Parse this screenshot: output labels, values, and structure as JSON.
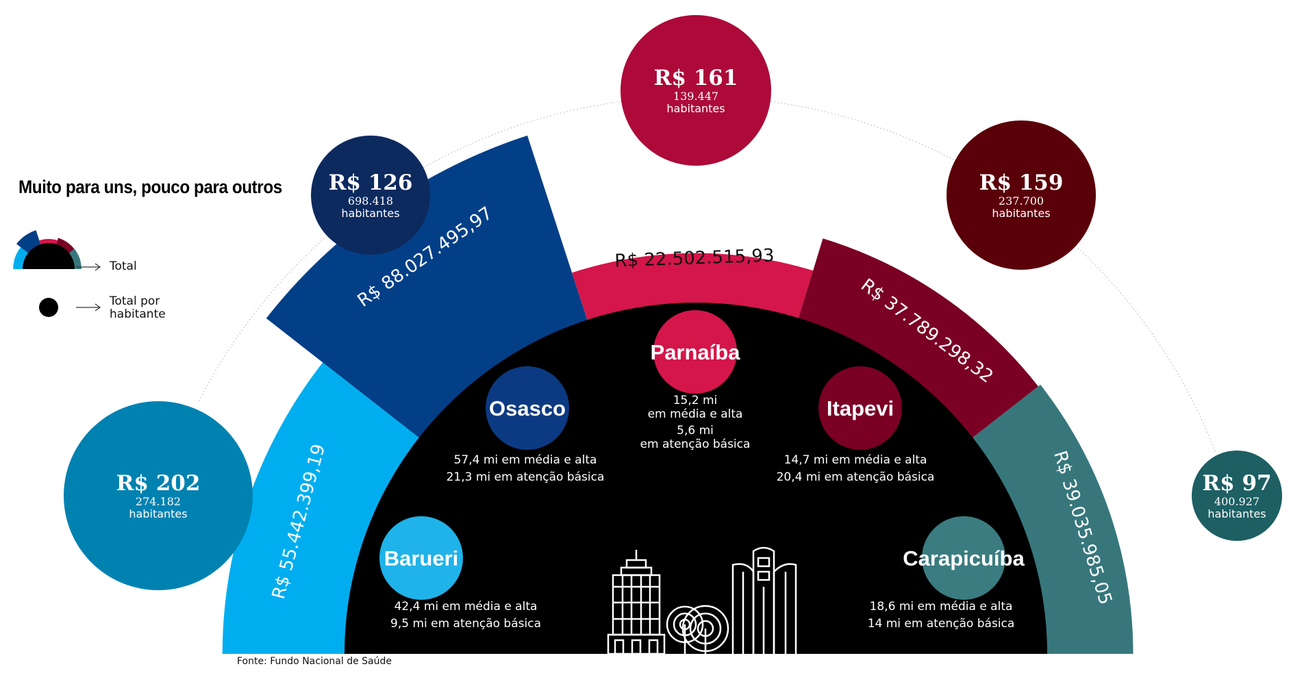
{
  "title": "Muito para uns, pouco para outros",
  "legend": {
    "total_label": "Total",
    "per_capita_label_line1": "Total por",
    "per_capita_label_line2": "habitante"
  },
  "source": "Fonte: Fundo Nacional de Saúde",
  "colors": {
    "Barueri": {
      "segment": "#00aeef",
      "inner": "#1fb3ea",
      "outer": "#0082b1"
    },
    "Osasco": {
      "segment": "#033f87",
      "inner": "#0c3a82",
      "outer": "#0c2a5e"
    },
    "Parnaíba": {
      "segment": "#d4164a",
      "inner": "#d4164a",
      "outer": "#ad0a3a"
    },
    "Itapevi": {
      "segment": "#7a0024",
      "inner": "#7a0024",
      "outer": "#5a0008"
    },
    "Carapicuíba": {
      "segment": "#37777c",
      "inner": "#3a7c80",
      "outer": "#1d5f63"
    },
    "center": "#000000"
  },
  "chart_data": {
    "type": "bar",
    "categories": [
      "Barueri",
      "Osasco",
      "Parnaíba",
      "Itapevi",
      "Carapicuíba"
    ],
    "values": [
      55442399.19,
      88027495.97,
      22502515.93,
      37789298.32,
      39035985.05
    ],
    "value_labels": [
      "R$ 55.442.399,19",
      "R$ 88.027.495,97",
      "R$ 22.502.515,93",
      "R$ 37.789.298,32",
      "R$ 39.035.985,05"
    ],
    "per_capita": [
      202,
      126,
      161,
      159,
      97
    ],
    "per_capita_labels": [
      "R$ 202",
      "R$ 126",
      "R$ 161",
      "R$ 159",
      "R$ 97"
    ],
    "population": [
      "274.182",
      "698.418",
      "139.447",
      "237.700",
      "400.927"
    ],
    "population_unit": "habitantes",
    "breakdown": [
      {
        "line1": "42,4 mi em média e alta",
        "line2": "9,5 mi em atenção básica"
      },
      {
        "line1": "57,4 mi em média e alta",
        "line2": "21,3 mi em atenção básica"
      },
      {
        "line1": "15,2 mi",
        "line2": "em média e alta",
        "line3": "5,6 mi",
        "line4": "em atenção básica"
      },
      {
        "line1": "14,7 mi  em média e alta",
        "line2": "20,4 mi em atenção básica"
      },
      {
        "line1": "18,6 mi em média e alta",
        "line2": "14 mi em atenção básica"
      }
    ]
  }
}
